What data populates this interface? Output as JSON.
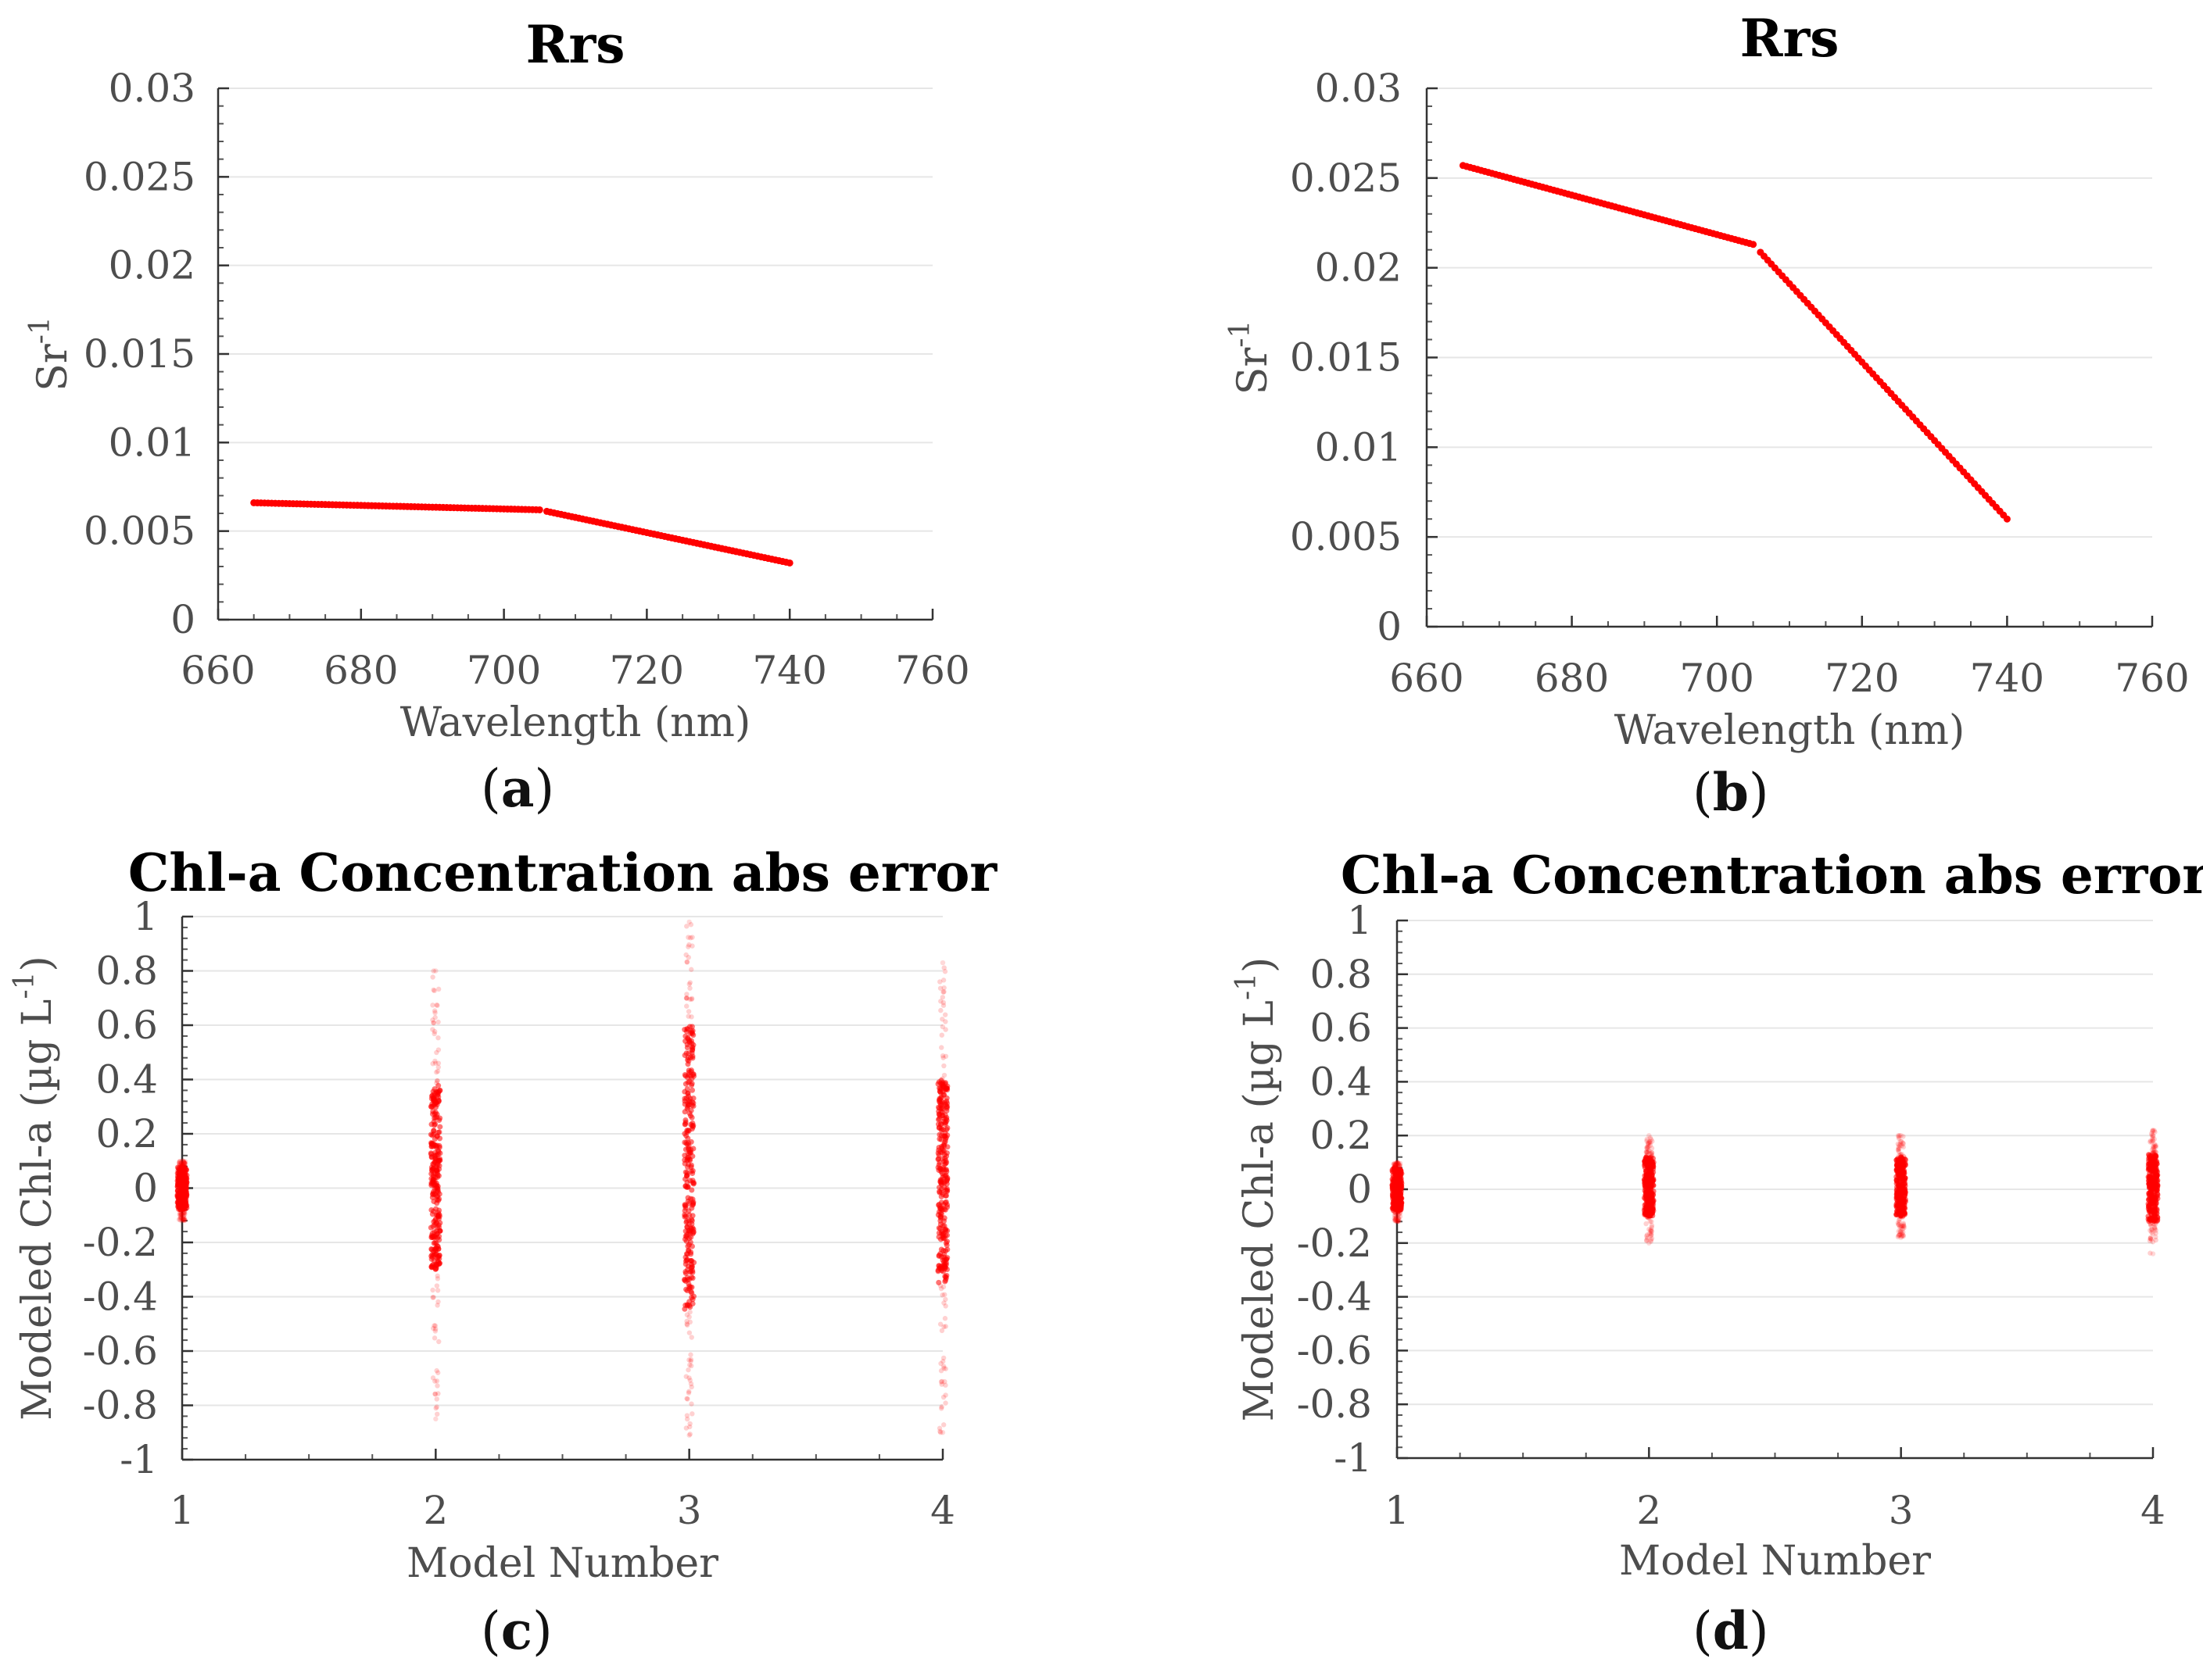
{
  "chart_data": [
    {
      "panel": "a",
      "type": "scatter",
      "title": "Rrs",
      "xlabel": "Wavelength (nm)",
      "ylabel_main": "Sr",
      "ylabel_sup": "-1",
      "xlim": [
        660,
        760
      ],
      "ylim": [
        0,
        0.03
      ],
      "xticks": [
        660,
        680,
        700,
        720,
        740,
        760
      ],
      "xtick_labels": [
        "660",
        "680",
        "700",
        "720",
        "740",
        "760"
      ],
      "yticks": [
        0,
        0.005,
        0.01,
        0.015,
        0.02,
        0.025,
        0.03
      ],
      "ytick_labels": [
        "0",
        "0.005",
        "0.01",
        "0.015",
        "0.02",
        "0.025",
        "0.03"
      ],
      "grid": true,
      "color": "#ff0000",
      "segments": [
        {
          "x": [
            665,
            705
          ],
          "y": [
            0.0066,
            0.0062
          ]
        },
        {
          "x": [
            705,
            740
          ],
          "y": [
            0.0062,
            0.0032
          ]
        }
      ],
      "x_step": 1
    },
    {
      "panel": "b",
      "type": "scatter",
      "title": "Rrs",
      "xlabel": "Wavelength (nm)",
      "ylabel_main": "Sr",
      "ylabel_sup": "-1",
      "xlim": [
        660,
        760
      ],
      "ylim": [
        0,
        0.03
      ],
      "xticks": [
        660,
        680,
        700,
        720,
        740,
        760
      ],
      "xtick_labels": [
        "660",
        "680",
        "700",
        "720",
        "740",
        "760"
      ],
      "yticks": [
        0,
        0.005,
        0.01,
        0.015,
        0.02,
        0.025,
        0.03
      ],
      "ytick_labels": [
        "0",
        "0.005",
        "0.01",
        "0.015",
        "0.02",
        "0.025",
        "0.03"
      ],
      "grid": true,
      "color": "#ff0000",
      "segments": [
        {
          "x": [
            665,
            705
          ],
          "y": [
            0.0257,
            0.0213
          ]
        },
        {
          "x": [
            705,
            740
          ],
          "y": [
            0.0213,
            0.006
          ]
        }
      ],
      "x_step": 1
    },
    {
      "panel": "c",
      "type": "scatter",
      "title": "Chl-a Concentration abs error",
      "xlabel": "Model Number",
      "ylabel_main": "Modeled Chl-a (µg L",
      "ylabel_sup": "-1",
      "ylabel_close": ")",
      "xlim": [
        1,
        4
      ],
      "ylim": [
        -1,
        1
      ],
      "xticks": [
        1,
        2,
        3,
        4
      ],
      "xtick_labels": [
        "1",
        "2",
        "3",
        "4"
      ],
      "yticks": [
        -1,
        -0.8,
        -0.6,
        -0.4,
        -0.2,
        0,
        0.2,
        0.4,
        0.6,
        0.8,
        1
      ],
      "ytick_labels": [
        "-1",
        "-0.8",
        "-0.6",
        "-0.4",
        "-0.2",
        "0",
        "0.2",
        "0.4",
        "0.6",
        "0.8",
        "1"
      ],
      "grid": true,
      "color": "#ff0000",
      "error_series": [
        {
          "model": 1,
          "core": [
            -0.08,
            0.08
          ],
          "range": [
            -0.12,
            0.1
          ]
        },
        {
          "model": 2,
          "core": [
            -0.3,
            0.38
          ],
          "range": [
            -0.85,
            0.8
          ]
        },
        {
          "model": 3,
          "core": [
            -0.45,
            0.6
          ],
          "range": [
            -0.91,
            0.98
          ]
        },
        {
          "model": 4,
          "core": [
            -0.35,
            0.4
          ],
          "range": [
            -0.9,
            0.83
          ]
        }
      ]
    },
    {
      "panel": "d",
      "type": "scatter",
      "title": "Chl-a Concentration abs error",
      "xlabel": "Model Number",
      "ylabel_main": "Modeled Chl-a (µg L",
      "ylabel_sup": "-1",
      "ylabel_close": ")",
      "xlim": [
        1,
        4
      ],
      "ylim": [
        -1,
        1
      ],
      "xticks": [
        1,
        2,
        3,
        4
      ],
      "xtick_labels": [
        "1",
        "2",
        "3",
        "4"
      ],
      "yticks": [
        -1,
        -0.8,
        -0.6,
        -0.4,
        -0.2,
        0,
        0.2,
        0.4,
        0.6,
        0.8,
        1
      ],
      "ytick_labels": [
        "-1",
        "-0.8",
        "-0.6",
        "-0.4",
        "-0.2",
        "0",
        "0.2",
        "0.4",
        "0.6",
        "0.8",
        "1"
      ],
      "grid": true,
      "color": "#ff0000",
      "error_series": [
        {
          "model": 1,
          "core": [
            -0.08,
            0.08
          ],
          "range": [
            -0.12,
            0.1
          ]
        },
        {
          "model": 2,
          "core": [
            -0.1,
            0.12
          ],
          "range": [
            -0.2,
            0.2
          ]
        },
        {
          "model": 3,
          "core": [
            -0.1,
            0.12
          ],
          "range": [
            -0.18,
            0.2
          ]
        },
        {
          "model": 4,
          "core": [
            -0.12,
            0.13
          ],
          "range": [
            -0.24,
            0.22
          ]
        }
      ]
    }
  ],
  "panel_labels": [
    "a",
    "b",
    "c",
    "d"
  ]
}
